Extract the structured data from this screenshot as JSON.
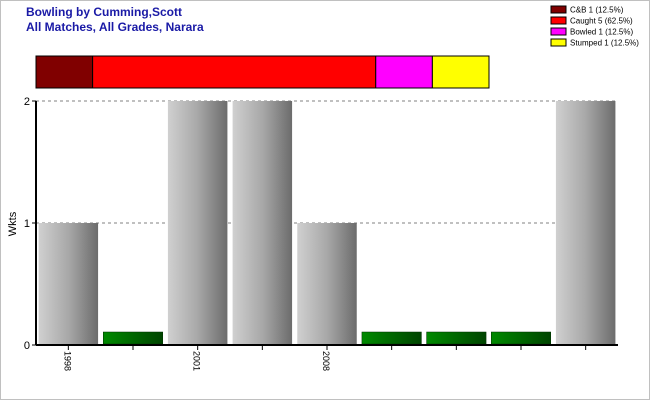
{
  "chart_data": [
    {
      "type": "stacked-hbar",
      "xlim": [
        0,
        8
      ],
      "series": [
        {
          "name": "C&B 1 (12.5%)",
          "color": "#800000",
          "values": [
            1
          ]
        },
        {
          "name": "Caught 5 (62.5%)",
          "color": "#ff0000",
          "values": [
            5
          ]
        },
        {
          "name": "Bowled 1 (12.5%)",
          "color": "#ff00ff",
          "values": [
            1
          ]
        },
        {
          "name": "Stumped 1 (12.5%)",
          "color": "#ffff00",
          "values": [
            1
          ]
        }
      ]
    },
    {
      "type": "bar",
      "title": "Bowling by Cumming,Scott",
      "subtitle": "All Matches, All Grades, Narara",
      "y_label": "Wkts",
      "categories": [
        "1998",
        null,
        "2001",
        null,
        "2008",
        null,
        null,
        null,
        null
      ],
      "values": [
        1,
        0,
        2,
        2,
        1,
        0,
        0,
        0,
        2
      ],
      "color": "#a0a0a0",
      "zero_color": "#006400",
      "ylim": [
        0,
        2
      ],
      "yticks": [
        0,
        1,
        2
      ],
      "grid": true
    }
  ]
}
